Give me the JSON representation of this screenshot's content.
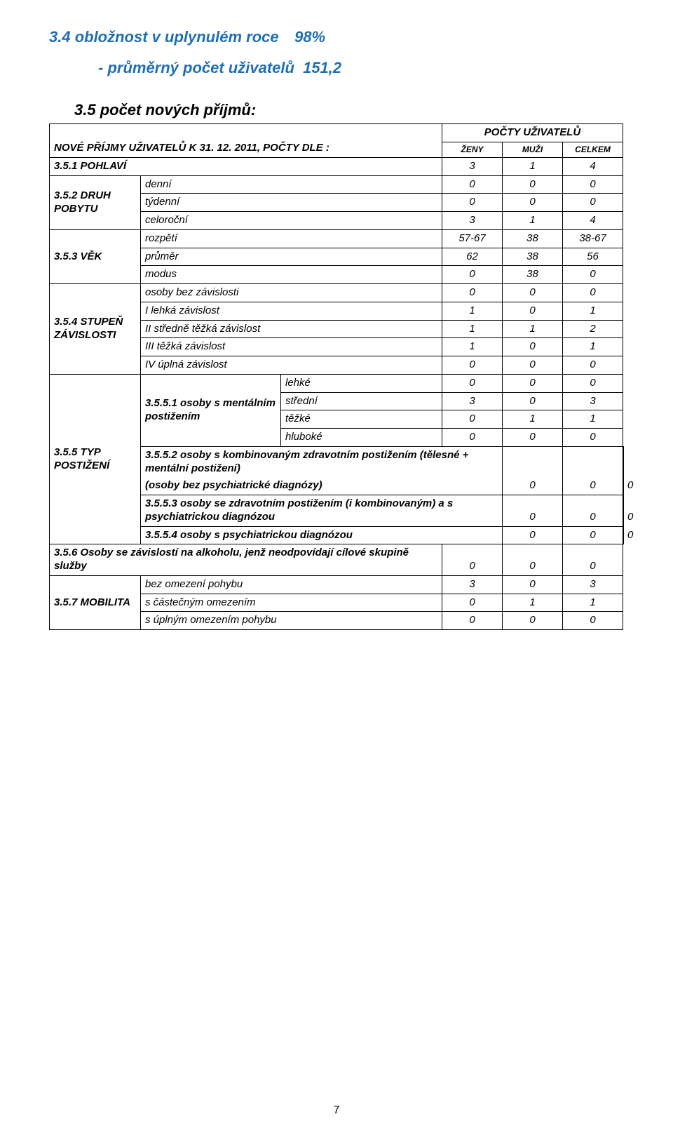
{
  "heading": {
    "section_label": "3.4 obložnost v uplynulém roce",
    "percent_value": "98%",
    "avg_users_label": "- průměrný počet uživatelů",
    "avg_users_value": "151,2",
    "count_label": "3.5 počet nových příjmů",
    "count_sep": ":"
  },
  "table": {
    "header": {
      "title_left": "NOVÉ PŘÍJMY UŽIVATELŮ K 31. 12. 2011, POČTY DLE :",
      "group_label": "POČTY UŽIVATELŮ",
      "col_zeny": "ŽENY",
      "col_muzi": "MUŽI",
      "col_celkem": "CELKEM"
    },
    "rows": {
      "pohlavi": {
        "label": "3.5.1 POHLAVÍ",
        "zeny": "3",
        "muzi": "1",
        "celkem": "4"
      },
      "druh": {
        "label": "3.5.2 DRUH POBYTU",
        "denni": {
          "label": "denní",
          "zeny": "0",
          "muzi": "0",
          "celkem": "0"
        },
        "tydenni": {
          "label": "týdenní",
          "zeny": "0",
          "muzi": "0",
          "celkem": "0"
        },
        "celorocni": {
          "label": "celoroční",
          "zeny": "3",
          "muzi": "1",
          "celkem": "4"
        }
      },
      "vek": {
        "label": "3.5.3 VĚK",
        "rozpeti": {
          "label": "rozpětí",
          "zeny": "57-67",
          "muzi": "38",
          "celkem": "38-67"
        },
        "prumer": {
          "label": "průměr",
          "zeny": "62",
          "muzi": "38",
          "celkem": "56"
        },
        "modus": {
          "label": "modus",
          "zeny": "0",
          "muzi": "38",
          "celkem": "0"
        }
      },
      "stupen": {
        "label": "3.5.4 STUPEŇ ZÁVISLOSTI",
        "bez": {
          "label": "osoby bez závislosti",
          "zeny": "0",
          "muzi": "0",
          "celkem": "0"
        },
        "i": {
          "label": "I    lehká závislost",
          "zeny": "1",
          "muzi": "0",
          "celkem": "1"
        },
        "ii": {
          "label": "II  středně těžká závislost",
          "zeny": "1",
          "muzi": "1",
          "celkem": "2"
        },
        "iii": {
          "label": "III těžká závislost",
          "zeny": "1",
          "muzi": "0",
          "celkem": "1"
        },
        "iv": {
          "label": "IV úplná závislost",
          "zeny": "0",
          "muzi": "0",
          "celkem": "0"
        }
      },
      "typ": {
        "label": "3.5.5 TYP POSTIŽENÍ",
        "g1": {
          "label": "3.5.5.1 osoby s mentálním postižením",
          "lehke": {
            "label": "lehké",
            "zeny": "0",
            "muzi": "0",
            "celkem": "0"
          },
          "stredni": {
            "label": "střední",
            "zeny": "3",
            "muzi": "0",
            "celkem": "3"
          },
          "tezke": {
            "label": "těžké",
            "zeny": "0",
            "muzi": "1",
            "celkem": "1"
          },
          "hluboke": {
            "label": "hluboké",
            "zeny": "0",
            "muzi": "0",
            "celkem": "0"
          }
        },
        "g2": {
          "label": "3.5.5.2 osoby s kombinovaným zdravotním postižením (tělesné + mentální postižení)",
          "paren": "(osoby bez psychiatrické diagnózy)",
          "zeny": "0",
          "muzi": "0",
          "celkem": "0"
        },
        "g3": {
          "label": "3.5.5.3 osoby se zdravotním postižením (i kombinovaným) a s psychiatrickou diagnózou",
          "zeny": "0",
          "muzi": "0",
          "celkem": "0"
        },
        "g4": {
          "label": "3.5.5.4 osoby s psychiatrickou diagnózou",
          "zeny": "0",
          "muzi": "0",
          "celkem": "0"
        }
      },
      "alkohol": {
        "label": "3.5.6 Osoby se závislostí na alkoholu, jenž neodpovídají cílové skupině služby",
        "zeny": "0",
        "muzi": "0",
        "celkem": "0"
      },
      "mobilita": {
        "label": "3.5.7 MOBILITA",
        "bez": {
          "label": "bez omezení pohybu",
          "zeny": "3",
          "muzi": "0",
          "celkem": "3"
        },
        "cast": {
          "label": "s částečným omezením",
          "zeny": "0",
          "muzi": "1",
          "celkem": "1"
        },
        "uplne": {
          "label": "s úplným omezením pohybu",
          "zeny": "0",
          "muzi": "0",
          "celkem": "0"
        }
      }
    }
  },
  "page_number": "7",
  "colors": {
    "accent": "#1f6fb3",
    "text": "#000000",
    "border": "#000000",
    "background": "#ffffff"
  }
}
